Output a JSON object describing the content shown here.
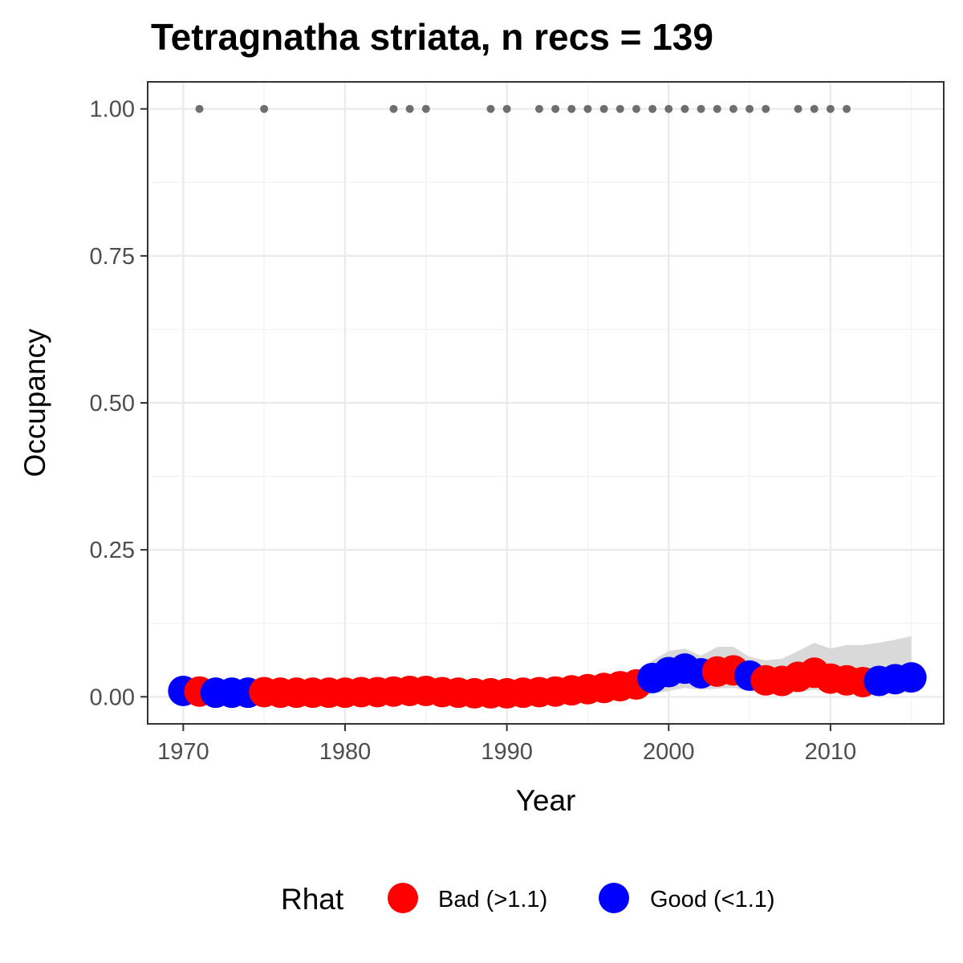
{
  "chart_data": {
    "type": "line",
    "title": "Tetragnatha striata, n recs = 139",
    "xlabel": "Year",
    "ylabel": "Occupancy",
    "xlim": [
      1967.8,
      1017.0
    ],
    "ylim": [
      -0.046,
      1.046
    ],
    "x_ticks": [
      1970,
      1980,
      1990,
      2000,
      2010
    ],
    "x_tick_labels": [
      "1970",
      "1980",
      "1990",
      "2000",
      "2010"
    ],
    "y_ticks": [
      0,
      0.25,
      0.5,
      0.75,
      1.0
    ],
    "y_tick_labels": [
      "0.00",
      "0.25",
      "0.50",
      "0.75",
      "1.00"
    ],
    "grid": true,
    "legend": {
      "title": "Rhat",
      "position": "bottom",
      "entries": [
        {
          "label": "Bad (>1.1)",
          "color": "#ff0000"
        },
        {
          "label": "Good (<1.1)",
          "color": "#0000ff"
        }
      ]
    },
    "colors": {
      "bad": "#ff0000",
      "good": "#0000ff",
      "record": "#6e6e6e",
      "ribbon": "#d9d9d9"
    },
    "series": [
      {
        "name": "Occupancy",
        "x": [
          1970,
          1971,
          1972,
          1973,
          1974,
          1975,
          1976,
          1977,
          1978,
          1979,
          1980,
          1981,
          1982,
          1983,
          1984,
          1985,
          1986,
          1987,
          1988,
          1989,
          1990,
          1991,
          1992,
          1993,
          1994,
          1995,
          1996,
          1997,
          1998,
          1999,
          2000,
          2001,
          2002,
          2003,
          2004,
          2005,
          2006,
          2007,
          2008,
          2009,
          2010,
          2011,
          2012,
          2013,
          2014,
          2015
        ],
        "values": [
          0.01,
          0.009,
          0.007,
          0.007,
          0.007,
          0.008,
          0.007,
          0.007,
          0.007,
          0.007,
          0.007,
          0.008,
          0.008,
          0.009,
          0.01,
          0.01,
          0.008,
          0.007,
          0.006,
          0.006,
          0.006,
          0.007,
          0.008,
          0.009,
          0.011,
          0.013,
          0.015,
          0.018,
          0.021,
          0.032,
          0.042,
          0.048,
          0.04,
          0.043,
          0.045,
          0.036,
          0.028,
          0.027,
          0.034,
          0.041,
          0.031,
          0.028,
          0.025,
          0.027,
          0.03,
          0.033
        ],
        "rhat": [
          "good",
          "bad",
          "good",
          "good",
          "good",
          "bad",
          "bad",
          "bad",
          "bad",
          "bad",
          "bad",
          "bad",
          "bad",
          "bad",
          "bad",
          "bad",
          "bad",
          "bad",
          "bad",
          "bad",
          "bad",
          "bad",
          "bad",
          "bad",
          "bad",
          "bad",
          "bad",
          "bad",
          "bad",
          "good",
          "good",
          "good",
          "good",
          "bad",
          "bad",
          "good",
          "bad",
          "bad",
          "bad",
          "bad",
          "bad",
          "bad",
          "bad",
          "good",
          "good",
          "good"
        ],
        "lower": [
          0,
          0,
          0,
          0,
          0,
          0,
          0,
          0,
          0,
          0,
          0,
          0,
          0,
          0,
          0,
          0,
          0,
          0,
          0,
          0,
          0,
          0,
          0,
          0,
          0,
          0,
          0,
          0,
          0,
          0.005,
          0.01,
          0.015,
          0.012,
          0.014,
          0.015,
          0.01,
          0.005,
          0.005,
          0.008,
          0.012,
          0.008,
          0.006,
          0.004,
          0.005,
          0.006,
          0.007
        ],
        "upper": [
          0.02,
          0.018,
          0.016,
          0.015,
          0.015,
          0.016,
          0.015,
          0.015,
          0.015,
          0.015,
          0.015,
          0.016,
          0.016,
          0.018,
          0.019,
          0.02,
          0.017,
          0.015,
          0.014,
          0.014,
          0.014,
          0.015,
          0.016,
          0.018,
          0.021,
          0.024,
          0.028,
          0.032,
          0.038,
          0.062,
          0.078,
          0.082,
          0.07,
          0.085,
          0.085,
          0.068,
          0.062,
          0.065,
          0.078,
          0.092,
          0.082,
          0.088,
          0.088,
          0.092,
          0.097,
          0.103
        ]
      }
    ],
    "records": {
      "name": "Records",
      "years": [
        1971,
        1975,
        1983,
        1984,
        1985,
        1989,
        1990,
        1992,
        1993,
        1994,
        1995,
        1996,
        1997,
        1998,
        1999,
        2000,
        2001,
        2002,
        2003,
        2004,
        2005,
        2006,
        2008,
        2009,
        2010,
        2011
      ],
      "y": 1.0
    }
  }
}
